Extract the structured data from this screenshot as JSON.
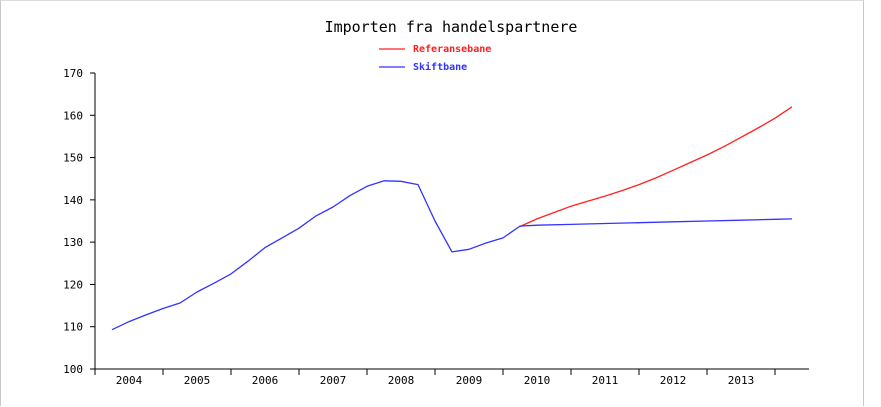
{
  "chart_data": {
    "type": "line",
    "title": "Importen fra handelspartnere",
    "xlabel": "",
    "ylabel": "",
    "ylim": [
      100,
      170
    ],
    "yticks": [
      100,
      110,
      120,
      130,
      140,
      150,
      160,
      170
    ],
    "xlim": [
      2003.5,
      2014.0
    ],
    "categories": [
      "2004",
      "2005",
      "2006",
      "2007",
      "2008",
      "2009",
      "2010",
      "2011",
      "2012",
      "2013"
    ],
    "legend_position": "top-center",
    "grid": false,
    "series": [
      {
        "name": "Referansebane",
        "color": "#ff2020",
        "x": [
          2009.75,
          2010.0,
          2010.25,
          2010.5,
          2010.75,
          2011.0,
          2011.25,
          2011.5,
          2011.75,
          2012.0,
          2012.25,
          2012.5,
          2012.75,
          2013.0,
          2013.25,
          2013.5,
          2013.75
        ],
        "values": [
          133.7,
          135.5,
          137.0,
          138.5,
          139.7,
          140.9,
          142.2,
          143.6,
          145.2,
          147.0,
          148.8,
          150.6,
          152.6,
          154.8,
          157.0,
          159.3,
          162.0
        ]
      },
      {
        "name": "Skiftbane",
        "color": "#3333ff",
        "x": [
          2003.75,
          2004.0,
          2004.25,
          2004.5,
          2004.75,
          2005.0,
          2005.25,
          2005.5,
          2005.75,
          2006.0,
          2006.25,
          2006.5,
          2006.75,
          2007.0,
          2007.25,
          2007.5,
          2007.75,
          2008.0,
          2008.25,
          2008.5,
          2008.75,
          2009.0,
          2009.25,
          2009.5,
          2009.75,
          2010.0,
          2010.5,
          2011.0,
          2011.5,
          2012.0,
          2012.5,
          2013.0,
          2013.5,
          2013.75
        ],
        "values": [
          109.3,
          111.2,
          112.8,
          114.3,
          115.6,
          118.2,
          120.3,
          122.5,
          125.5,
          128.7,
          131.0,
          133.3,
          136.2,
          138.3,
          141.0,
          143.2,
          144.5,
          144.4,
          143.6,
          135.0,
          127.7,
          128.3,
          129.8,
          131.0,
          133.8,
          134.0,
          134.2,
          134.4,
          134.6,
          134.8,
          135.0,
          135.2,
          135.4,
          135.5
        ]
      }
    ]
  }
}
